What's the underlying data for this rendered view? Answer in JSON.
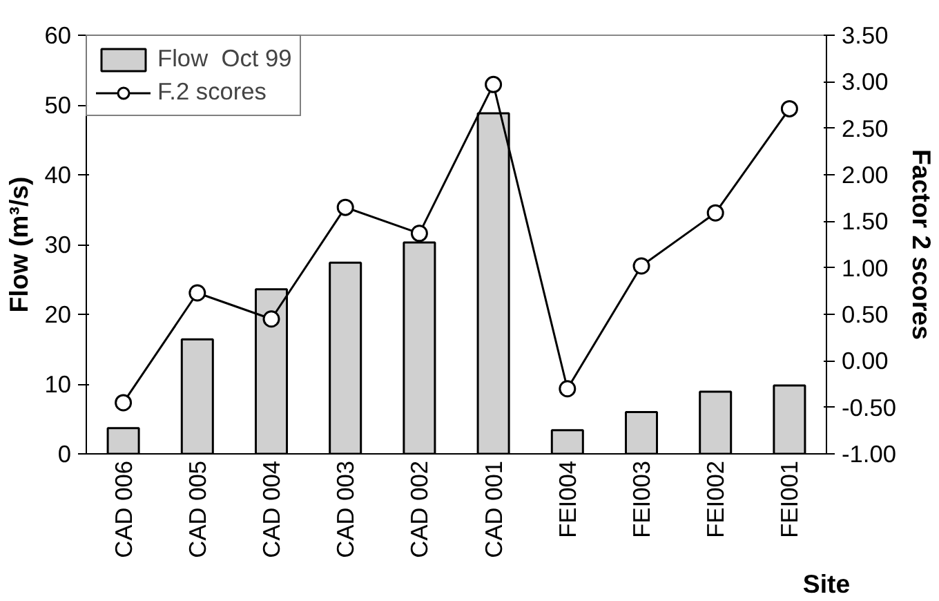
{
  "chart_data": {
    "type": "bar",
    "xlabel": "Site",
    "ylabel": "Flow (m³/s)",
    "y2label": "Factor 2 scores",
    "categories": [
      "CAD 006",
      "CAD 005",
      "CAD 004",
      "CAD 003",
      "CAD 002",
      "CAD 001",
      "FEI004",
      "FEI003",
      "FEI002",
      "FEI001"
    ],
    "series": [
      {
        "name": "Flow  Oct 99",
        "color": "#d0d0d0",
        "values": [
          3.7,
          16.4,
          23.6,
          27.4,
          30.3,
          48.8,
          3.4,
          6.0,
          8.9,
          9.8
        ]
      },
      {
        "name": "F.2 scores",
        "type": "line",
        "axis": "y2",
        "color": "#000000",
        "marker": "circle",
        "line_style": "solid",
        "values": [
          -0.45,
          0.73,
          0.45,
          1.65,
          1.37,
          2.97,
          -0.3,
          1.02,
          1.59,
          2.71
        ]
      }
    ],
    "ylim": [
      0,
      60
    ],
    "yticks": [
      0,
      10,
      20,
      30,
      40,
      50,
      60
    ],
    "y2lim": [
      -1.0,
      3.5
    ],
    "y2ticks": [
      {
        "value": -1.0,
        "label": "-1.00"
      },
      {
        "value": -0.5,
        "label": "-0.50"
      },
      {
        "value": 0.0,
        "label": "0.00"
      },
      {
        "value": 0.5,
        "label": "0.50"
      },
      {
        "value": 1.0,
        "label": "1.00"
      },
      {
        "value": 1.5,
        "label": "1.50"
      },
      {
        "value": 2.0,
        "label": "2.00"
      },
      {
        "value": 2.5,
        "label": "2.50"
      },
      {
        "value": 3.0,
        "label": "3.00"
      },
      {
        "value": 3.5,
        "label": "3.50"
      }
    ],
    "grid": false,
    "legend": "top left"
  }
}
